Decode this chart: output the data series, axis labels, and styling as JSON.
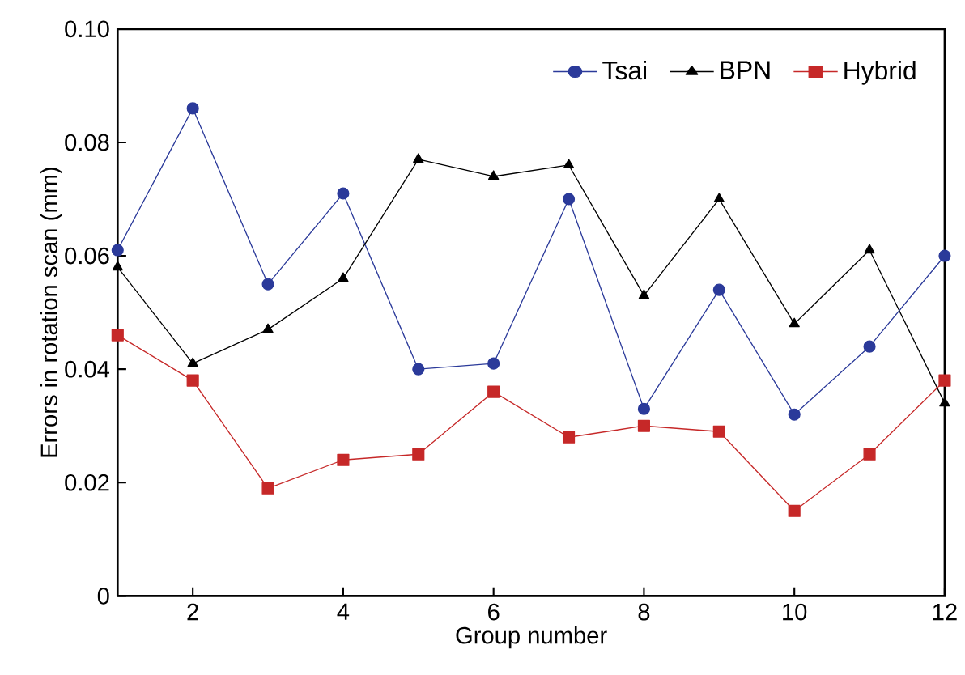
{
  "chart_data": {
    "type": "line",
    "xlabel": "Group number",
    "ylabel": "Errors in rotation scan (mm)",
    "x": [
      1,
      2,
      3,
      4,
      5,
      6,
      7,
      8,
      9,
      10,
      11,
      12
    ],
    "series": [
      {
        "name": "Tsai",
        "color": "#2b3a9a",
        "marker": "circle",
        "values": [
          0.061,
          0.086,
          0.055,
          0.071,
          0.04,
          0.041,
          0.07,
          0.033,
          0.054,
          0.032,
          0.044,
          0.06
        ]
      },
      {
        "name": "BPN",
        "color": "#000000",
        "marker": "triangle",
        "values": [
          0.058,
          0.041,
          0.047,
          0.056,
          0.077,
          0.074,
          0.076,
          0.053,
          0.07,
          0.048,
          0.061,
          0.034
        ]
      },
      {
        "name": "Hybrid",
        "color": "#c62828",
        "marker": "square",
        "values": [
          0.046,
          0.038,
          0.019,
          0.024,
          0.025,
          0.036,
          0.028,
          0.03,
          0.029,
          0.015,
          0.025,
          0.038
        ]
      }
    ],
    "xlim": [
      1,
      12
    ],
    "xticks": [
      2,
      4,
      6,
      8,
      10,
      12
    ],
    "ylim": [
      0,
      0.1
    ],
    "yticks": [
      {
        "value": 0,
        "label": "0"
      },
      {
        "value": 0.02,
        "label": "0.02"
      },
      {
        "value": 0.04,
        "label": "0.04"
      },
      {
        "value": 0.06,
        "label": "0.06"
      },
      {
        "value": 0.08,
        "label": "0.08"
      },
      {
        "value": 0.1,
        "label": "0.10"
      }
    ],
    "grid": false,
    "legend": "top right",
    "line_style": "solid"
  }
}
